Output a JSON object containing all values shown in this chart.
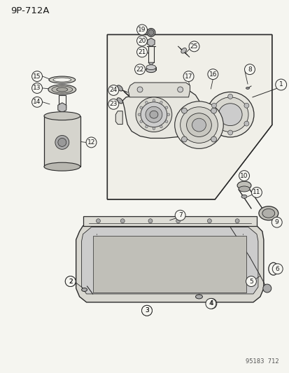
{
  "title": "9P-712A",
  "bg_color": "#f5f5f0",
  "line_color": "#2a2a2a",
  "label_color": "#1a1a1a",
  "figsize": [
    4.14,
    5.33
  ],
  "dpi": 100,
  "bottom_right_text": "95183  712"
}
